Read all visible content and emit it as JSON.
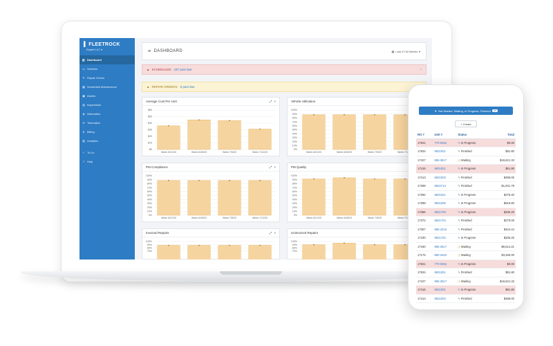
{
  "app": {
    "brand": "FLEETROCK",
    "company": "Expert LLC"
  },
  "sidebar": {
    "items": [
      {
        "label": "Dashboard",
        "icon": "dashboard-icon",
        "active": true
      },
      {
        "label": "Vehicles",
        "icon": "truck-icon"
      },
      {
        "label": "Repair Orders",
        "icon": "wrench-icon"
      },
      {
        "label": "Scheduled Maintenance",
        "icon": "calendar-icon"
      },
      {
        "label": "Assets",
        "icon": "box-icon"
      },
      {
        "label": "Inspections",
        "icon": "clipboard-icon"
      },
      {
        "label": "Warranties",
        "icon": "shield-icon"
      },
      {
        "label": "Telematics",
        "icon": "signal-icon"
      },
      {
        "label": "Billing",
        "icon": "dollar-icon"
      },
      {
        "label": "Analytics",
        "icon": "chart-icon"
      }
    ],
    "secondary": [
      {
        "label": "To Do",
        "icon": "check-icon"
      },
      {
        "label": "Help",
        "icon": "question-icon"
      }
    ]
  },
  "header": {
    "title": "DASHBOARD",
    "range": "Last 4 Full Weeks"
  },
  "alerts": {
    "scheduled": {
      "label": "SCHEDULED:",
      "count": "187 past due"
    },
    "repair": {
      "label": "REPAIR ORDERS:",
      "count": "5 past due"
    }
  },
  "colors": {
    "sidebar": "#2e7cc4",
    "bar_fill": "#f6d49f",
    "bar_stroke": "#e8b86a"
  },
  "chart_data": [
    {
      "type": "bar",
      "title": "Average Cost Per Unit",
      "categories": [
        "Week 6/21/20",
        "Week 6/28/20",
        "Week 7/5/20",
        "Week 7/12/20"
      ],
      "values": [
        36,
        45,
        44,
        31
      ],
      "ylim": [
        0,
        60
      ],
      "yticks": [
        "$60",
        "$50",
        "$40",
        "$30",
        "$20",
        "$10",
        "$0"
      ]
    },
    {
      "type": "bar",
      "title": "Vehicle Utilization",
      "categories": [
        "Week 6/21/20",
        "Week 6/28/20",
        "Week 7/5/20",
        "Week 7/12/20"
      ],
      "values": [
        88,
        88,
        88,
        88
      ],
      "ylim": [
        0,
        100
      ],
      "yticks": [
        "100%",
        "90%",
        "80%",
        "70%",
        "60%",
        "50%",
        "40%",
        "30%",
        "20%",
        "10%",
        "0%"
      ]
    },
    {
      "type": "bar",
      "title": "PM Compliance",
      "categories": [
        "Week 6/21/20",
        "Week 6/28/20",
        "Week 7/5/20",
        "Week 7/12/20"
      ],
      "values": [
        88,
        88,
        88,
        88
      ],
      "ylim": [
        0,
        100
      ],
      "yticks": [
        "100%",
        "90%",
        "80%",
        "70%",
        "60%",
        "50%",
        "40%",
        "30%",
        "20%",
        "10%",
        "0%"
      ]
    },
    {
      "type": "bar",
      "title": "PM Quality",
      "categories": [
        "Week 6/21/20",
        "Week 6/28/20",
        "Week 7/5/20",
        "Week 7/12/20"
      ],
      "values": [
        92,
        95,
        92,
        92
      ],
      "ylim": [
        0,
        100
      ],
      "yticks": [
        "100%",
        "90%",
        "80%",
        "70%",
        "60%",
        "50%",
        "40%",
        "30%",
        "20%",
        "10%",
        "0%"
      ]
    },
    {
      "type": "bar",
      "title": "Invoiced Repairs",
      "categories": [
        "Week 6/21/20",
        "Week 6/28/20",
        "Week 7/5/20",
        "Week 7/12/20"
      ],
      "values": [
        88,
        88,
        88,
        88
      ],
      "ylim": [
        0,
        100
      ],
      "yticks": [
        "100%",
        "90%",
        "80%",
        "70%"
      ]
    },
    {
      "type": "bar",
      "title": "Uninvoiced Repairs",
      "categories": [
        "Week 6/21/20",
        "Week 6/28/20",
        "Week 7/5/20",
        "Week 7/12/20"
      ],
      "values": [
        90,
        95,
        90,
        90
      ],
      "ylim": [
        0,
        100
      ],
      "yticks": [
        "100%",
        "90%",
        "80%",
        "70%"
      ]
    }
  ],
  "mobile": {
    "filter_label": "Not Started, Waiting, In Progress, Finished",
    "filter_count": "44",
    "create_label": "Create",
    "columns": [
      "RO #",
      "Unit #",
      "Status",
      "Total"
    ],
    "rows": [
      {
        "ro": "17841",
        "unit": "770-0354",
        "status": "In Progress",
        "total": "$0.00",
        "overdue": true
      },
      {
        "ro": "17834",
        "unit": "8631001",
        "status": "Finished",
        "total": "$91.80"
      },
      {
        "ro": "17427",
        "unit": "865-3617",
        "status": "Waiting",
        "total": "$16,621.33"
      },
      {
        "ro": "17416",
        "unit": "8631001",
        "status": "In Progress",
        "total": "$91.80",
        "overdue": true
      },
      {
        "ro": "17413",
        "unit": "8631003",
        "status": "Finished",
        "total": "$486.00"
      },
      {
        "ro": "17398",
        "unit": "8632713",
        "status": "Finished",
        "total": "$1,001.78"
      },
      {
        "ro": "17392",
        "unit": "8631541",
        "status": "In Progress",
        "total": "$275.40"
      },
      {
        "ro": "17388",
        "unit": "8631005",
        "status": "In Progress",
        "total": "$615.60"
      },
      {
        "ro": "17386",
        "unit": "8631709",
        "status": "In Progress",
        "total": "$205.20",
        "overdue": true
      },
      {
        "ro": "17372",
        "unit": "8631704",
        "status": "Finished",
        "total": "$270.00"
      },
      {
        "ro": "17357",
        "unit": "865-4216",
        "status": "Finished",
        "total": "$424.44"
      },
      {
        "ro": "17190",
        "unit": "8631702",
        "status": "In Progress",
        "total": "$205.20"
      },
      {
        "ro": "17180",
        "unit": "865-3617",
        "status": "Waiting",
        "total": "$6,614.21"
      },
      {
        "ro": "17175",
        "unit": "860-2522",
        "status": "Waiting",
        "total": "$3,460.00"
      },
      {
        "ro": "17841",
        "unit": "770-0354",
        "status": "In Progress",
        "total": "$0.00",
        "overdue": true
      },
      {
        "ro": "17834",
        "unit": "8631001",
        "status": "Finished",
        "total": "$91.80"
      },
      {
        "ro": "17427",
        "unit": "865-3617",
        "status": "Waiting",
        "total": "$16,621.33"
      },
      {
        "ro": "17416",
        "unit": "8631001",
        "status": "In Progress",
        "total": "$91.80",
        "overdue": true
      },
      {
        "ro": "17413",
        "unit": "8631003",
        "status": "Finished",
        "total": "$486.00"
      }
    ]
  }
}
